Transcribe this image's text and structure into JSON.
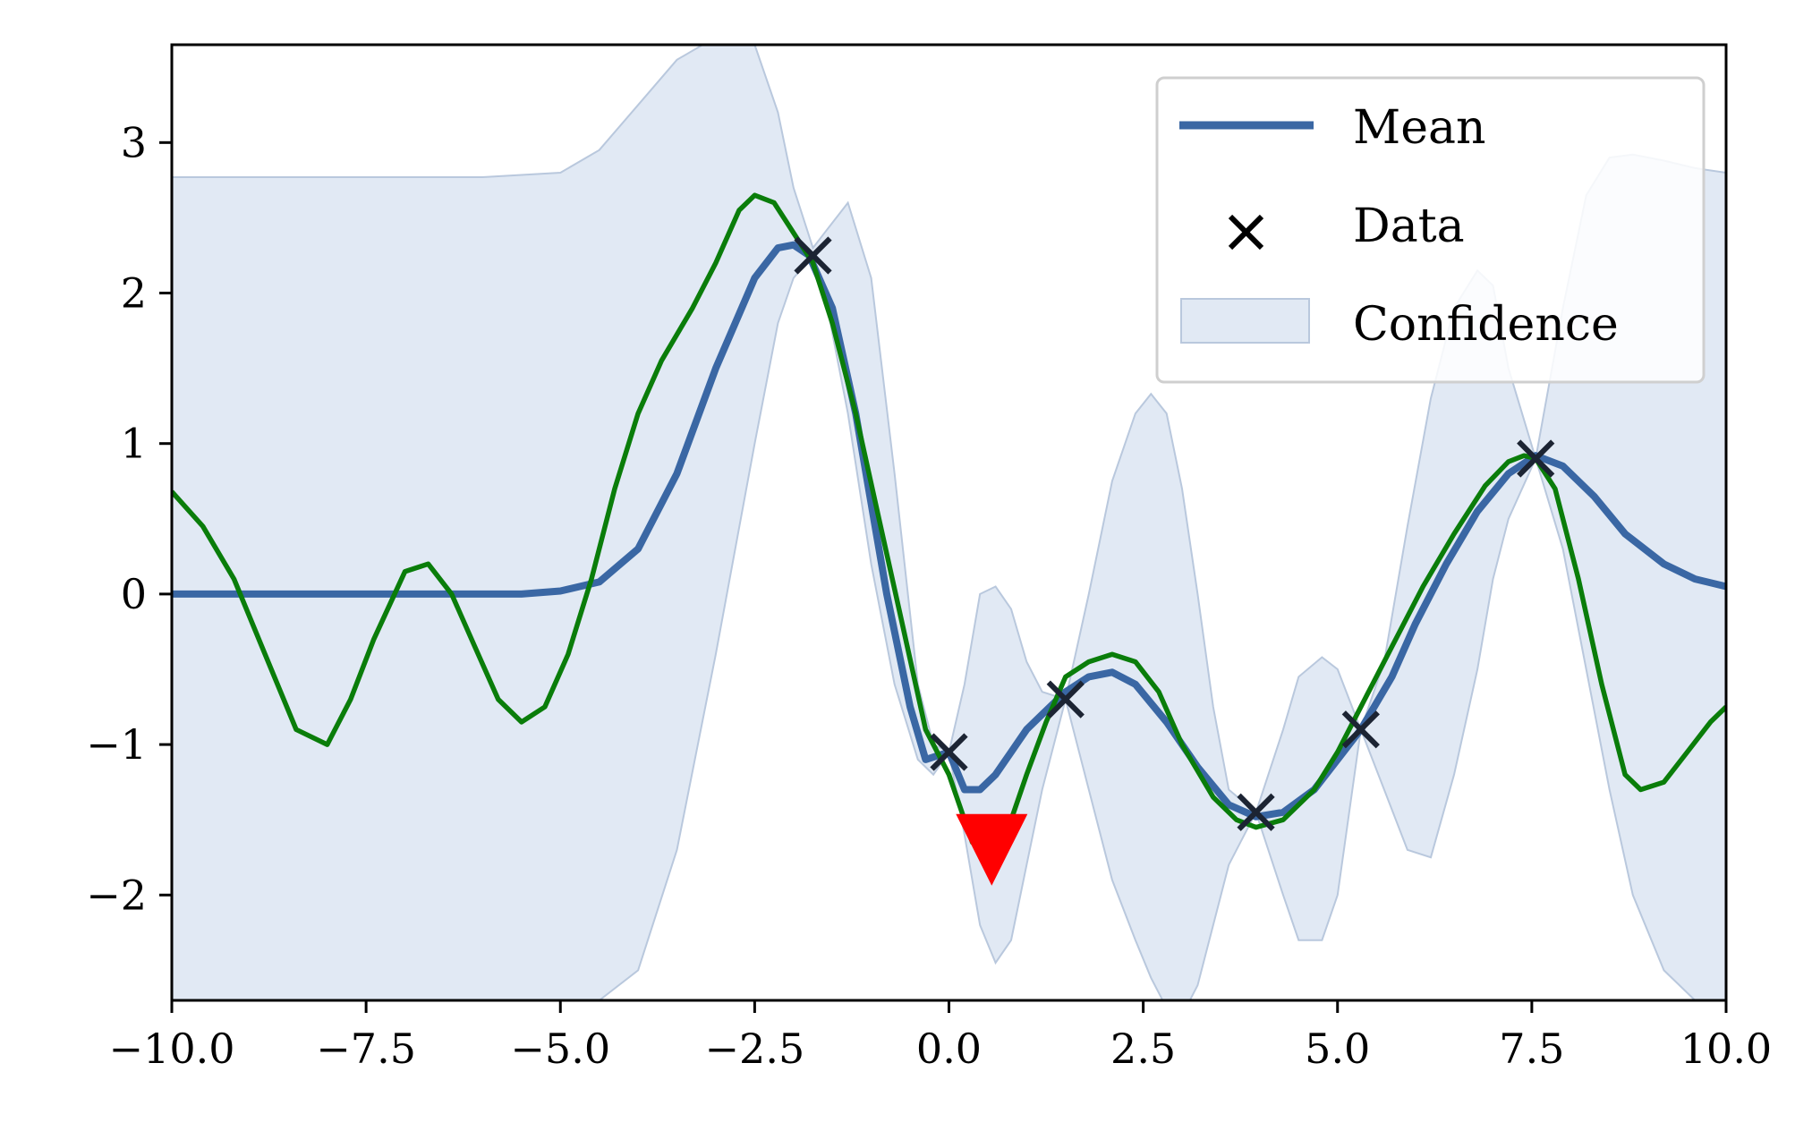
{
  "chart_data": {
    "type": "line",
    "title": "",
    "xlabel": "",
    "ylabel": "",
    "xlim": [
      -10,
      10
    ],
    "ylim": [
      -2.7,
      3.65
    ],
    "grid": false,
    "legend_position": "top-right",
    "x_ticks": [
      -10.0,
      -7.5,
      -5.0,
      -2.5,
      0.0,
      2.5,
      5.0,
      7.5,
      10.0
    ],
    "x_tick_labels": [
      "−10.0",
      "−7.5",
      "−5.0",
      "−2.5",
      "0.0",
      "2.5",
      "5.0",
      "7.5",
      "10.0"
    ],
    "y_ticks": [
      -2,
      -1,
      0,
      1,
      2,
      3
    ],
    "y_tick_labels": [
      "−2",
      "−1",
      "0",
      "1",
      "2",
      "3"
    ],
    "legend": [
      {
        "key": "mean",
        "label": "Mean"
      },
      {
        "key": "data",
        "label": "Data"
      },
      {
        "key": "confidence",
        "label": "Confidence"
      }
    ],
    "colors": {
      "mean": "#3a67a4",
      "sample": "#0a7d0a",
      "data": "#1c2433",
      "confidence_fill": "#e1e9f4",
      "confidence_edge": "#b9c8dd",
      "marker": "#ff0000"
    },
    "data_points": [
      {
        "x": -1.75,
        "y": 2.25
      },
      {
        "x": 0.0,
        "y": -1.05
      },
      {
        "x": 1.5,
        "y": -0.7
      },
      {
        "x": 3.95,
        "y": -1.45
      },
      {
        "x": 5.3,
        "y": -0.9
      },
      {
        "x": 7.55,
        "y": 0.9
      }
    ],
    "mean": {
      "x": [
        -10,
        -6,
        -5.5,
        -5,
        -4.5,
        -4,
        -3.5,
        -3,
        -2.5,
        -2.2,
        -2,
        -1.8,
        -1.5,
        -1.2,
        -1,
        -0.8,
        -0.5,
        -0.3,
        0,
        0.2,
        0.4,
        0.6,
        0.8,
        1.0,
        1.2,
        1.5,
        1.8,
        2.1,
        2.4,
        2.8,
        3.2,
        3.6,
        3.95,
        4.3,
        4.7,
        5,
        5.3,
        5.7,
        6,
        6.4,
        6.8,
        7.2,
        7.55,
        7.9,
        8.3,
        8.7,
        9.2,
        9.6,
        10
      ],
      "y": [
        0,
        0,
        0,
        0.02,
        0.08,
        0.3,
        0.8,
        1.5,
        2.1,
        2.3,
        2.32,
        2.25,
        1.9,
        1.2,
        0.6,
        0.0,
        -0.75,
        -1.1,
        -1.05,
        -1.3,
        -1.3,
        -1.2,
        -1.05,
        -0.9,
        -0.8,
        -0.65,
        -0.55,
        -0.52,
        -0.6,
        -0.85,
        -1.15,
        -1.4,
        -1.48,
        -1.45,
        -1.3,
        -1.1,
        -0.9,
        -0.55,
        -0.2,
        0.2,
        0.55,
        0.8,
        0.92,
        0.85,
        0.65,
        0.4,
        0.2,
        0.1,
        0.05
      ]
    },
    "sample": {
      "x": [
        -10,
        -9.6,
        -9.2,
        -8.8,
        -8.4,
        -8.0,
        -7.7,
        -7.4,
        -7.0,
        -6.7,
        -6.4,
        -6.1,
        -5.8,
        -5.5,
        -5.2,
        -4.9,
        -4.6,
        -4.3,
        -4.0,
        -3.7,
        -3.3,
        -3.0,
        -2.7,
        -2.5,
        -2.25,
        -2.0,
        -1.75,
        -1.5,
        -1.2,
        -0.9,
        -0.6,
        -0.3,
        0.0,
        0.3,
        0.55,
        0.8,
        1.0,
        1.25,
        1.5,
        1.8,
        2.1,
        2.4,
        2.7,
        3.0,
        3.4,
        3.7,
        3.95,
        4.3,
        4.7,
        5.0,
        5.3,
        5.7,
        6.1,
        6.5,
        6.9,
        7.2,
        7.4,
        7.55,
        7.8,
        8.1,
        8.4,
        8.7,
        8.9,
        9.2,
        9.5,
        9.8,
        10
      ],
      "y": [
        0.68,
        0.45,
        0.1,
        -0.4,
        -0.9,
        -1.0,
        -0.7,
        -0.3,
        0.15,
        0.2,
        0.0,
        -0.35,
        -0.7,
        -0.85,
        -0.75,
        -0.4,
        0.1,
        0.7,
        1.2,
        1.55,
        1.9,
        2.2,
        2.55,
        2.65,
        2.6,
        2.4,
        2.2,
        1.8,
        1.2,
        0.5,
        -0.2,
        -0.9,
        -1.2,
        -1.65,
        -1.7,
        -1.5,
        -1.2,
        -0.85,
        -0.55,
        -0.45,
        -0.4,
        -0.45,
        -0.65,
        -1.0,
        -1.35,
        -1.5,
        -1.55,
        -1.5,
        -1.3,
        -1.05,
        -0.75,
        -0.35,
        0.05,
        0.4,
        0.72,
        0.88,
        0.92,
        0.9,
        0.7,
        0.1,
        -0.6,
        -1.2,
        -1.3,
        -1.25,
        -1.05,
        -0.85,
        -0.75
      ]
    },
    "confidence": {
      "x": [
        -10,
        -6,
        -5,
        -4.5,
        -4,
        -3.5,
        -3,
        -2.5,
        -2.2,
        -2,
        -1.75,
        -1.6,
        -1.3,
        -1.0,
        -0.7,
        -0.4,
        -0.2,
        0,
        0.2,
        0.4,
        0.6,
        0.8,
        1.0,
        1.2,
        1.5,
        1.8,
        2.1,
        2.4,
        2.6,
        2.8,
        3.0,
        3.2,
        3.4,
        3.6,
        3.95,
        4.3,
        4.5,
        4.8,
        5.0,
        5.3,
        5.6,
        5.9,
        6.2,
        6.5,
        6.8,
        7.0,
        7.2,
        7.55,
        7.9,
        8.2,
        8.5,
        8.8,
        9.2,
        9.6,
        10
      ],
      "lower": [
        -2.75,
        -2.75,
        -2.75,
        -2.7,
        -2.5,
        -1.7,
        -0.4,
        1.0,
        1.8,
        2.1,
        2.25,
        2.0,
        1.2,
        0.2,
        -0.6,
        -1.1,
        -1.2,
        -1.05,
        -1.6,
        -2.2,
        -2.45,
        -2.3,
        -1.8,
        -1.3,
        -0.7,
        -1.3,
        -1.9,
        -2.3,
        -2.55,
        -2.75,
        -2.8,
        -2.6,
        -2.2,
        -1.8,
        -1.45,
        -2.0,
        -2.3,
        -2.3,
        -2.0,
        -0.9,
        -1.3,
        -1.7,
        -1.75,
        -1.2,
        -0.5,
        0.1,
        0.5,
        0.9,
        0.3,
        -0.5,
        -1.3,
        -2.0,
        -2.5,
        -2.7,
        -2.75
      ],
      "upper": [
        2.77,
        2.77,
        2.8,
        2.95,
        3.25,
        3.55,
        3.7,
        3.65,
        3.2,
        2.7,
        2.3,
        2.4,
        2.6,
        2.1,
        0.8,
        -0.6,
        -1.0,
        -1.05,
        -0.6,
        0.0,
        0.05,
        -0.1,
        -0.45,
        -0.65,
        -0.7,
        0.0,
        0.75,
        1.2,
        1.33,
        1.2,
        0.7,
        0.0,
        -0.75,
        -1.3,
        -1.45,
        -0.9,
        -0.55,
        -0.42,
        -0.5,
        -0.9,
        -0.45,
        0.45,
        1.3,
        1.9,
        2.15,
        2.05,
        1.5,
        0.9,
        1.9,
        2.65,
        2.9,
        2.92,
        2.88,
        2.83,
        2.8
      ]
    }
  }
}
